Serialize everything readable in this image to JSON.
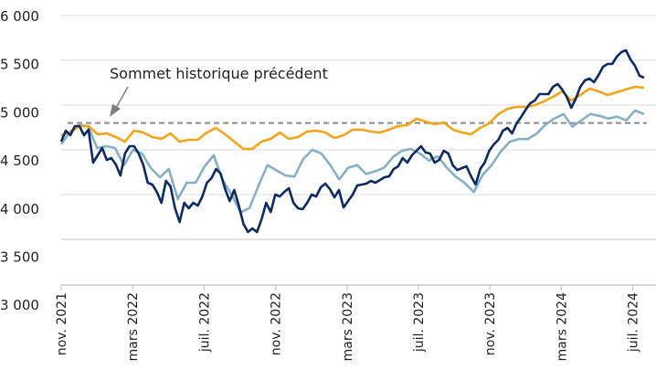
{
  "chart_data": {
    "type": "line",
    "title": "",
    "xlabel": "",
    "ylabel": "",
    "ylim": [
      3000,
      6000
    ],
    "yticks": [
      3000,
      3500,
      4000,
      4500,
      5000,
      5500,
      6000
    ],
    "ytick_labels": [
      "3 000",
      "3 500",
      "4 000",
      "4 500",
      "5 000",
      "5 500",
      "6 000"
    ],
    "x_unit": "months since nov. 2021",
    "xlim": [
      0,
      32.6
    ],
    "xticks": [
      0,
      4,
      8,
      12,
      16,
      20,
      24,
      28,
      32
    ],
    "xtick_labels": [
      "nov. 2021",
      "mars 2022",
      "juil. 2022",
      "nov. 2022",
      "mars 2023",
      "juil. 2023",
      "nov. 2023",
      "mars 2024",
      "juil. 2024"
    ],
    "grid": true,
    "reference_line": {
      "value": 4800,
      "style": "dashed",
      "color": "#8a8d91"
    },
    "annotation": {
      "text": "Sommet historique précédent"
    },
    "series": [
      {
        "id": "light",
        "color": "#86b0c4",
        "values": [
          4561,
          4704,
          4776,
          4765,
          4520,
          4541,
          4520,
          4327,
          4500,
          4459,
          4296,
          4194,
          4286,
          3950,
          4133,
          4133,
          4316,
          4439,
          4163,
          4000,
          3800,
          3850,
          4100,
          4330,
          4270,
          4214,
          4200,
          4400,
          4500,
          4460,
          4330,
          4170,
          4300,
          4330,
          4230,
          4260,
          4300,
          4420,
          4490,
          4510,
          4460,
          4380,
          4430,
          4300,
          4200,
          4130,
          4030,
          4220,
          4330,
          4480,
          4590,
          4620,
          4620,
          4680,
          4780,
          4850,
          4900,
          4760,
          4830,
          4900,
          4880,
          4850,
          4870,
          4830,
          4940,
          4900
        ]
      },
      {
        "id": "orange",
        "color": "#f6a31c",
        "values": [
          4663,
          4694,
          4765,
          4765,
          4673,
          4684,
          4643,
          4592,
          4714,
          4694,
          4643,
          4622,
          4684,
          4592,
          4612,
          4612,
          4694,
          4745,
          4673,
          4592,
          4510,
          4510,
          4592,
          4622,
          4694,
          4622,
          4643,
          4704,
          4714,
          4694,
          4633,
          4663,
          4725,
          4725,
          4704,
          4694,
          4725,
          4765,
          4776,
          4847,
          4816,
          4786,
          4806,
          4725,
          4694,
          4673,
          4745,
          4796,
          4898,
          4959,
          4980,
          4980,
          5000,
          5041,
          5092,
          5153,
          5051,
          5112,
          5184,
          5153,
          5112,
          5143,
          5174,
          5204,
          5194
        ]
      },
      {
        "id": "dark",
        "color": "#0c2a64",
        "values": [
          4592,
          4714,
          4663,
          4765,
          4765,
          4663,
          4725,
          4357,
          4439,
          4520,
          4388,
          4408,
          4337,
          4214,
          4459,
          4541,
          4541,
          4459,
          4337,
          4133,
          4112,
          4031,
          3908,
          4153,
          4092,
          3847,
          3694,
          3908,
          3847,
          3908,
          3878,
          3980,
          4133,
          4184,
          4286,
          4235,
          4061,
          3929,
          4051,
          3878,
          3674,
          3582,
          3622,
          3582,
          3724,
          3908,
          3806,
          4000,
          3980,
          4031,
          4071,
          3908,
          3847,
          3837,
          3908,
          4000,
          3980,
          4082,
          4122,
          4061,
          3969,
          4051,
          3857,
          3929,
          4000,
          4102,
          4112,
          4122,
          4153,
          4133,
          4163,
          4194,
          4204,
          4286,
          4316,
          4408,
          4357,
          4439,
          4490,
          4541,
          4470,
          4459,
          4357,
          4388,
          4490,
          4459,
          4327,
          4275,
          4296,
          4316,
          4204,
          4112,
          4286,
          4357,
          4490,
          4561,
          4612,
          4714,
          4745,
          4684,
          4796,
          4867,
          4949,
          5020,
          5051,
          5122,
          5122,
          5122,
          5204,
          5235,
          5174,
          5092,
          4969,
          5071,
          5204,
          5276,
          5296,
          5255,
          5337,
          5429,
          5459,
          5459,
          5541,
          5592,
          5612,
          5510,
          5439,
          5327,
          5306
        ]
      }
    ]
  }
}
